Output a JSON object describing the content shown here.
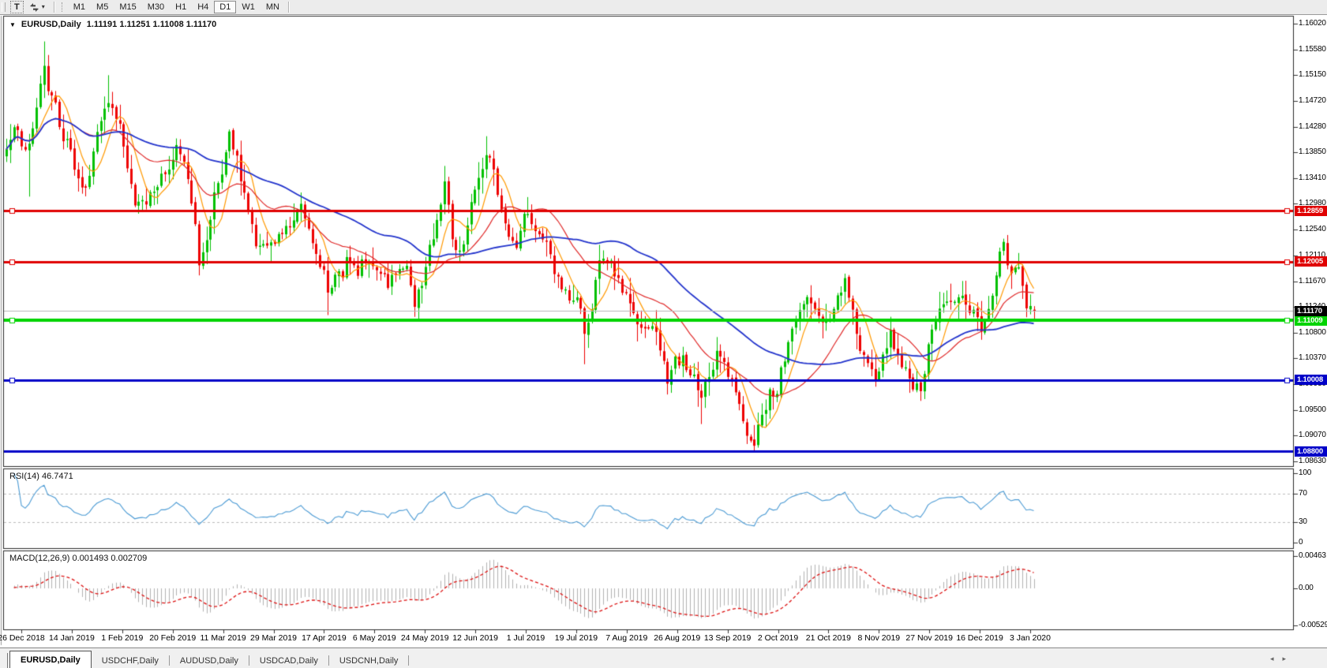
{
  "toolbar": {
    "text_tool_label": "T",
    "caret_icon": "▾",
    "timeframes": [
      "M1",
      "M5",
      "M15",
      "M30",
      "H1",
      "H4",
      "D1",
      "W1",
      "MN"
    ],
    "active_timeframe": "D1"
  },
  "chart": {
    "dropdown_icon": "▼",
    "title_symbol": "EURUSD,Daily",
    "title_ohlc": "1.11191 1.11251 1.11008 1.11170",
    "price_axis": {
      "top_tick_value": 1.1602,
      "bottom_tick_value": 1.0863,
      "ticks": [
        "1.16020",
        "1.15580",
        "1.15150",
        "1.14720",
        "1.14280",
        "1.13850",
        "1.13410",
        "1.12980",
        "1.12540",
        "1.12110",
        "1.11670",
        "1.11240",
        "1.10800",
        "1.10370",
        "1.09930",
        "1.09500",
        "1.09070",
        "1.08630"
      ]
    },
    "hlines": [
      {
        "price": 1.12859,
        "label": "1.12859",
        "color": "#e00000",
        "thickness": 3,
        "handles": true
      },
      {
        "price": 1.12005,
        "label": "1.12005",
        "color": "#e00000",
        "thickness": 3,
        "handles": true
      },
      {
        "price": 1.11009,
        "label": "1.11009",
        "color": "#00d400",
        "thickness": 4,
        "handles": true
      },
      {
        "price": 1.10008,
        "label": "1.10008",
        "color": "#0000c8",
        "thickness": 3,
        "handles": true
      },
      {
        "price": 1.088,
        "label": "1.08800",
        "color": "#0000c8",
        "thickness": 3,
        "handles": false
      }
    ],
    "current_price": {
      "value": 1.1117,
      "label": "1.11170",
      "line_color": "#b8b8b8",
      "badge_bg": "#000000"
    },
    "series": {
      "bar_count": 273,
      "seed": 9,
      "up_color": "#00c000",
      "down_color": "#ee0000",
      "last_bar": {
        "o": 1.11191,
        "h": 1.11251,
        "l": 1.11008,
        "c": 1.1117
      },
      "anchors": [
        [
          0,
          1.139
        ],
        [
          2,
          1.1435
        ],
        [
          4,
          1.14
        ],
        [
          6,
          1.1395
        ],
        [
          8,
          1.1465
        ],
        [
          10,
          1.153
        ],
        [
          11,
          1.148
        ],
        [
          13,
          1.1465
        ],
        [
          15,
          1.141
        ],
        [
          17,
          1.1385
        ],
        [
          19,
          1.1345
        ],
        [
          21,
          1.1315
        ],
        [
          23,
          1.139
        ],
        [
          25,
          1.1435
        ],
        [
          27,
          1.1475
        ],
        [
          29,
          1.144
        ],
        [
          31,
          1.1405
        ],
        [
          34,
          1.129
        ],
        [
          37,
          1.1305
        ],
        [
          40,
          1.133
        ],
        [
          43,
          1.1355
        ],
        [
          45,
          1.139
        ],
        [
          47,
          1.137
        ],
        [
          49,
          1.1305
        ],
        [
          51,
          1.1205
        ],
        [
          53,
          1.1245
        ],
        [
          55,
          1.131
        ],
        [
          57,
          1.134
        ],
        [
          59,
          1.141
        ],
        [
          61,
          1.137
        ],
        [
          63,
          1.132
        ],
        [
          66,
          1.1225
        ],
        [
          69,
          1.122
        ],
        [
          72,
          1.124
        ],
        [
          75,
          1.127
        ],
        [
          78,
          1.1295
        ],
        [
          80,
          1.126
        ],
        [
          82,
          1.122
        ],
        [
          85,
          1.1155
        ],
        [
          88,
          1.1175
        ],
        [
          90,
          1.1205
        ],
        [
          93,
          1.1185
        ],
        [
          96,
          1.121
        ],
        [
          99,
          1.118
        ],
        [
          101,
          1.116
        ],
        [
          104,
          1.1185
        ],
        [
          106,
          1.1175
        ],
        [
          108,
          1.1135
        ],
        [
          110,
          1.1165
        ],
        [
          112,
          1.1225
        ],
        [
          114,
          1.127
        ],
        [
          116,
          1.133
        ],
        [
          118,
          1.1245
        ],
        [
          120,
          1.1215
        ],
        [
          123,
          1.129
        ],
        [
          125,
          1.1335
        ],
        [
          127,
          1.1385
        ],
        [
          129,
          1.135
        ],
        [
          131,
          1.1285
        ],
        [
          133,
          1.125
        ],
        [
          135,
          1.1225
        ],
        [
          137,
          1.128
        ],
        [
          139,
          1.127
        ],
        [
          141,
          1.1245
        ],
        [
          143,
          1.1225
        ],
        [
          145,
          1.1185
        ],
        [
          147,
          1.115
        ],
        [
          149,
          1.1145
        ],
        [
          151,
          1.114
        ],
        [
          153,
          1.108
        ],
        [
          155,
          1.1125
        ],
        [
          157,
          1.1195
        ],
        [
          159,
          1.1205
        ],
        [
          161,
          1.118
        ],
        [
          163,
          1.115
        ],
        [
          165,
          1.1125
        ],
        [
          167,
          1.1095
        ],
        [
          169,
          1.1085
        ],
        [
          171,
          1.11
        ],
        [
          173,
          1.106
        ],
        [
          175,
          1.0995
        ],
        [
          177,
          1.103
        ],
        [
          179,
          1.104
        ],
        [
          181,
          1.1015
        ],
        [
          183,
          1.099
        ],
        [
          184,
          1.0965
        ],
        [
          186,
          1.101
        ],
        [
          188,
          1.104
        ],
        [
          190,
          1.102
        ],
        [
          192,
          1.0995
        ],
        [
          194,
          1.0955
        ],
        [
          196,
          1.091
        ],
        [
          198,
          1.0895
        ],
        [
          200,
          1.0935
        ],
        [
          202,
          1.0975
        ],
        [
          204,
          1.0985
        ],
        [
          206,
          1.104
        ],
        [
          208,
          1.1085
        ],
        [
          210,
          1.1125
        ],
        [
          212,
          1.114
        ],
        [
          214,
          1.113
        ],
        [
          216,
          1.1105
        ],
        [
          218,
          1.1095
        ],
        [
          220,
          1.114
        ],
        [
          222,
          1.1165
        ],
        [
          224,
          1.112
        ],
        [
          226,
          1.105
        ],
        [
          228,
          1.102
        ],
        [
          230,
          1.1005
        ],
        [
          232,
          1.104
        ],
        [
          234,
          1.1075
        ],
        [
          236,
          1.1045
        ],
        [
          238,
          1.1015
        ],
        [
          240,
          1.0995
        ],
        [
          242,
          1.0985
        ],
        [
          244,
          1.105
        ],
        [
          246,
          1.11
        ],
        [
          248,
          1.112
        ],
        [
          250,
          1.1135
        ],
        [
          252,
          1.1145
        ],
        [
          254,
          1.113
        ],
        [
          256,
          1.1115
        ],
        [
          258,
          1.1085
        ],
        [
          260,
          1.112
        ],
        [
          262,
          1.118
        ],
        [
          264,
          1.1225
        ],
        [
          265,
          1.12
        ],
        [
          266,
          1.117
        ],
        [
          267,
          1.1185
        ],
        [
          268,
          1.1195
        ],
        [
          269,
          1.116
        ],
        [
          270,
          1.113
        ],
        [
          271,
          1.112
        ],
        [
          272,
          1.1117
        ]
      ],
      "wicks": [
        {
          "bar": 6,
          "low": 1.131
        },
        {
          "bar": 10,
          "high": 1.1572
        },
        {
          "bar": 27,
          "high": 1.1515
        },
        {
          "bar": 51,
          "low": 1.1177
        },
        {
          "bar": 85,
          "low": 1.111
        },
        {
          "bar": 108,
          "low": 1.1107
        },
        {
          "bar": 127,
          "high": 1.1412
        },
        {
          "bar": 153,
          "low": 1.1027
        },
        {
          "bar": 184,
          "low": 1.0926
        },
        {
          "bar": 198,
          "low": 1.088
        },
        {
          "bar": 222,
          "high": 1.118
        },
        {
          "bar": 230,
          "low": 1.1
        },
        {
          "bar": 242,
          "low": 1.0981
        },
        {
          "bar": 264,
          "high": 1.1239
        }
      ]
    },
    "mas": [
      {
        "period": 7,
        "color": "#ff9900",
        "width": 1.2
      },
      {
        "period": 21,
        "color": "#e02828",
        "width": 1.2
      },
      {
        "period": 50,
        "color": "#2233cc",
        "width": 1.8
      }
    ]
  },
  "rsi": {
    "label": "RSI(14) 46.7471",
    "period": 14,
    "current": 46.7471,
    "color": "#4a9ad4",
    "levels": [
      {
        "value": 100,
        "label": "100",
        "dashed": false
      },
      {
        "value": 70,
        "label": "70",
        "dashed": true
      },
      {
        "value": 30,
        "label": "30",
        "dashed": true
      },
      {
        "value": 0,
        "label": "0",
        "dashed": false
      }
    ]
  },
  "macd": {
    "label": "MACD(12,26,9) 0.001493 0.002709",
    "fast": 12,
    "slow": 26,
    "signal": 9,
    "main_value": 0.001493,
    "signal_value": 0.002709,
    "hist_color": "#b2b2b2",
    "signal_color": "#dd1111",
    "scale": [
      {
        "value": 0.00463,
        "label": "0.00463"
      },
      {
        "value": 0,
        "label": "0.00"
      },
      {
        "value": -0.00529,
        "label": "-0.00529"
      }
    ]
  },
  "date_axis": {
    "labels": [
      "26 Dec 2018",
      "14 Jan 2019",
      "1 Feb 2019",
      "20 Feb 2019",
      "11 Mar 2019",
      "29 Mar 2019",
      "17 Apr 2019",
      "6 May 2019",
      "24 May 2019",
      "12 Jun 2019",
      "1 Jul 2019",
      "19 Jul 2019",
      "7 Aug 2019",
      "26 Aug 2019",
      "13 Sep 2019",
      "2 Oct 2019",
      "21 Oct 2019",
      "8 Nov 2019",
      "27 Nov 2019",
      "16 Dec 2019",
      "3 Jan 2020"
    ]
  },
  "tabs": {
    "scroll_left": "◂",
    "scroll_right": "▸",
    "items": [
      {
        "label": "EURUSD,Daily",
        "active": true
      },
      {
        "label": "USDCHF,Daily",
        "active": false
      },
      {
        "label": "AUDUSD,Daily",
        "active": false
      },
      {
        "label": "USDCAD,Daily",
        "active": false
      },
      {
        "label": "USDCNH,Daily",
        "active": false
      }
    ]
  }
}
